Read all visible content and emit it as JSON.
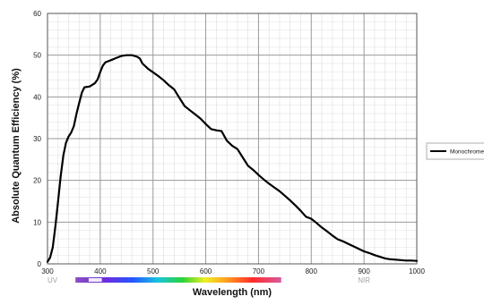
{
  "chart_data": {
    "type": "line",
    "title": "",
    "xlabel": "Wavelength (nm)",
    "ylabel": "Absolute Quantum Efficiency (%)",
    "xlim": [
      300,
      1000
    ],
    "ylim": [
      0,
      60
    ],
    "x_ticks": [
      "300",
      "400",
      "500",
      "600",
      "700",
      "800",
      "900",
      "1000"
    ],
    "y_ticks": [
      "0",
      "10",
      "20",
      "30",
      "40",
      "50",
      "60"
    ],
    "grid": true,
    "legend_position": "right",
    "spectrum_bar": {
      "left_label": "UV",
      "right_label": "NIR"
    },
    "series": [
      {
        "name": "Monochrome",
        "color": "#000000",
        "points": [
          [
            300,
            0.5
          ],
          [
            305,
            1.5
          ],
          [
            310,
            4
          ],
          [
            315,
            9
          ],
          [
            320,
            15
          ],
          [
            325,
            21
          ],
          [
            330,
            26
          ],
          [
            335,
            29
          ],
          [
            340,
            30.5
          ],
          [
            345,
            31.5
          ],
          [
            350,
            33
          ],
          [
            355,
            36
          ],
          [
            360,
            38.5
          ],
          [
            365,
            41
          ],
          [
            370,
            42.3
          ],
          [
            380,
            42.5
          ],
          [
            390,
            43.3
          ],
          [
            395,
            44.2
          ],
          [
            400,
            46
          ],
          [
            405,
            47.5
          ],
          [
            410,
            48.3
          ],
          [
            420,
            48.8
          ],
          [
            430,
            49.3
          ],
          [
            440,
            49.8
          ],
          [
            450,
            50
          ],
          [
            460,
            50
          ],
          [
            470,
            49.6
          ],
          [
            475,
            49.2
          ],
          [
            480,
            48
          ],
          [
            490,
            46.8
          ],
          [
            500,
            45.9
          ],
          [
            510,
            45
          ],
          [
            520,
            44
          ],
          [
            530,
            42.8
          ],
          [
            540,
            41.8
          ],
          [
            550,
            39.8
          ],
          [
            560,
            37.8
          ],
          [
            570,
            36.8
          ],
          [
            580,
            35.8
          ],
          [
            590,
            34.8
          ],
          [
            600,
            33.5
          ],
          [
            610,
            32.3
          ],
          [
            620,
            32
          ],
          [
            630,
            31.8
          ],
          [
            640,
            29.5
          ],
          [
            650,
            28.3
          ],
          [
            660,
            27.5
          ],
          [
            670,
            25.5
          ],
          [
            680,
            23.5
          ],
          [
            690,
            22.5
          ],
          [
            700,
            21.3
          ],
          [
            710,
            20.2
          ],
          [
            720,
            19.2
          ],
          [
            730,
            18.3
          ],
          [
            740,
            17.4
          ],
          [
            750,
            16.3
          ],
          [
            760,
            15.2
          ],
          [
            770,
            14
          ],
          [
            780,
            12.7
          ],
          [
            790,
            11.3
          ],
          [
            800,
            10.8
          ],
          [
            810,
            9.8
          ],
          [
            820,
            8.7
          ],
          [
            830,
            7.8
          ],
          [
            840,
            6.8
          ],
          [
            850,
            5.9
          ],
          [
            860,
            5.4
          ],
          [
            870,
            4.8
          ],
          [
            880,
            4.2
          ],
          [
            890,
            3.6
          ],
          [
            900,
            3
          ],
          [
            910,
            2.6
          ],
          [
            920,
            2.1
          ],
          [
            930,
            1.7
          ],
          [
            940,
            1.3
          ],
          [
            950,
            1.1
          ],
          [
            960,
            1
          ],
          [
            970,
            0.9
          ],
          [
            980,
            0.8
          ],
          [
            990,
            0.8
          ],
          [
            1000,
            0.7
          ]
        ]
      }
    ]
  }
}
